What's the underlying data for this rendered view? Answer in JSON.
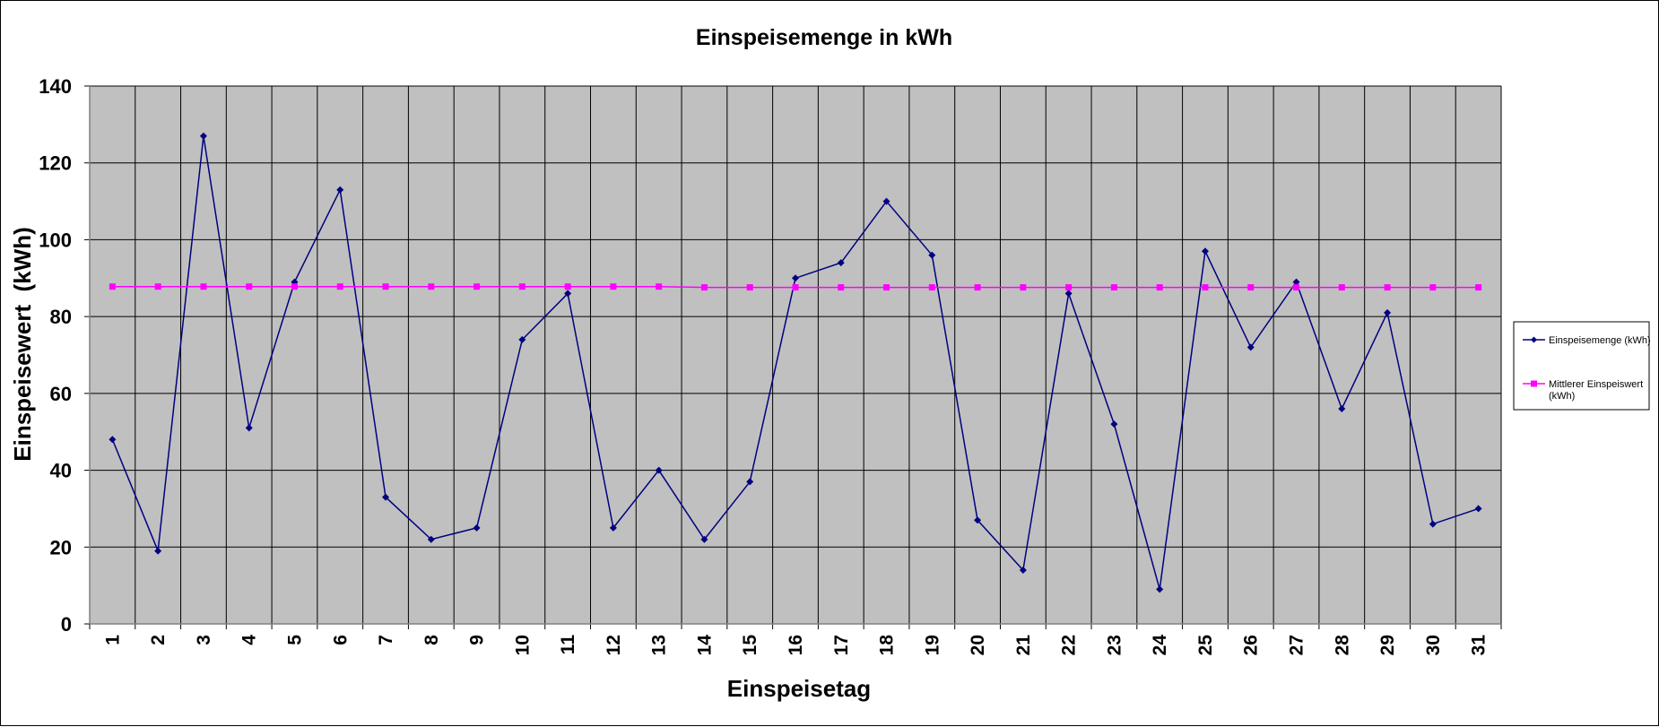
{
  "chart_data": {
    "type": "line",
    "title": "Einspeisemenge in kWh",
    "xlabel": "Einspeisetag",
    "ylabel": "Einspeisewert  (kWh)",
    "categories": [
      "1",
      "2",
      "3",
      "4",
      "5",
      "6",
      "7",
      "8",
      "9",
      "10",
      "11",
      "12",
      "13",
      "14",
      "15",
      "16",
      "17",
      "18",
      "19",
      "20",
      "21",
      "22",
      "23",
      "24",
      "25",
      "26",
      "27",
      "28",
      "29",
      "30",
      "31"
    ],
    "ylim": [
      0,
      140
    ],
    "yticks": [
      0,
      20,
      40,
      60,
      80,
      100,
      120,
      140
    ],
    "grid": true,
    "legend_position": "right",
    "plot_background": "#c0c0c0",
    "series": [
      {
        "name": "Einspeisemenge (kWh)",
        "color": "#000080",
        "marker": "diamond",
        "values": [
          48,
          19,
          127,
          51,
          89,
          113,
          33,
          22,
          25,
          74,
          86,
          25,
          40,
          22,
          37,
          90,
          94,
          110,
          96,
          27,
          14,
          86,
          52,
          9,
          97,
          72,
          89,
          56,
          81,
          26,
          30
        ]
      },
      {
        "name": "Mittlerer Einspeiswert (kWh)",
        "legend_lines": [
          "Mittlerer Einspeiswert",
          "(kWh)"
        ],
        "color": "#ff00ff",
        "marker": "square",
        "values": [
          87.8,
          87.8,
          87.8,
          87.8,
          87.8,
          87.8,
          87.8,
          87.8,
          87.8,
          87.8,
          87.8,
          87.8,
          87.8,
          87.6,
          87.6,
          87.6,
          87.6,
          87.6,
          87.6,
          87.6,
          87.6,
          87.6,
          87.6,
          87.6,
          87.6,
          87.6,
          87.6,
          87.6,
          87.6,
          87.6,
          87.6
        ]
      }
    ]
  }
}
